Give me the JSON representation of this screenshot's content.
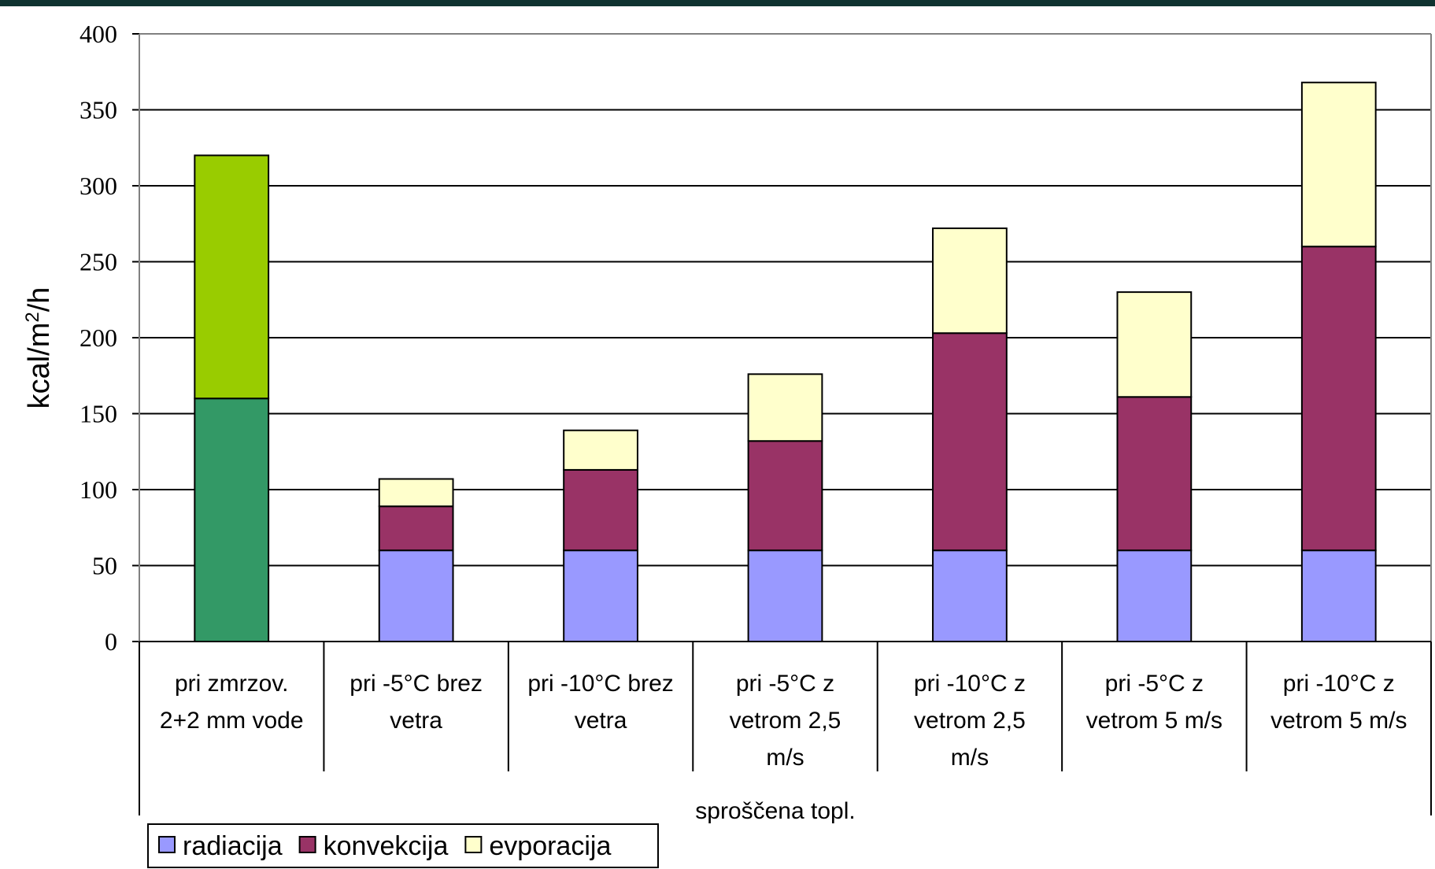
{
  "chart_data": {
    "type": "bar",
    "stacked": true,
    "title": "",
    "ylabel": "kcal/m²/h",
    "group_label": "sproščena topl.",
    "ylim": [
      0,
      400
    ],
    "yticks": [
      0,
      50,
      100,
      150,
      200,
      250,
      300,
      350,
      400
    ],
    "grid": true,
    "categories": [
      [
        "pri zmrzov.",
        "2+2 mm vode"
      ],
      [
        "pri -5°C brez",
        "vetra"
      ],
      [
        "pri -10°C brez",
        "vetra"
      ],
      [
        "pri -5°C z",
        "vetrom 2,5",
        "m/s"
      ],
      [
        "pri -10°C z",
        "vetrom 2,5",
        "m/s"
      ],
      [
        "pri -5°C z",
        "vetrom 5 m/s"
      ],
      [
        "pri -10°C z",
        "vetrom 5 m/s"
      ]
    ],
    "series": [
      {
        "name": "radiacija",
        "color": "#9999ff",
        "values": [
          160,
          60,
          60,
          60,
          60,
          60,
          60
        ]
      },
      {
        "name": "konvekcija",
        "color": "#993366",
        "values": [
          160,
          29,
          53,
          72,
          143,
          101,
          200
        ]
      },
      {
        "name": "evporacija",
        "color": "#ffffcc",
        "values": [
          0,
          18,
          26,
          44,
          69,
          69,
          108
        ]
      }
    ],
    "first_bar_colors": [
      "#339966",
      "#99cc00"
    ],
    "legend": {
      "position": "bottom-left"
    }
  }
}
